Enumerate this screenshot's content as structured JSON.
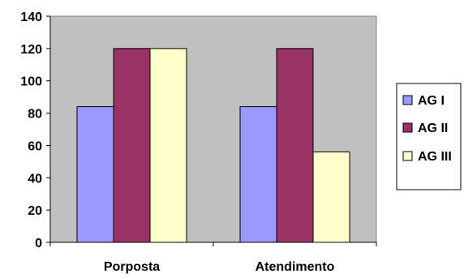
{
  "chart_data": {
    "type": "bar",
    "categories": [
      "Porposta",
      "Atendimento"
    ],
    "series": [
      {
        "name": "AG I",
        "values": [
          84,
          84
        ],
        "color": "#9999FF"
      },
      {
        "name": "AG II",
        "values": [
          120,
          120
        ],
        "color": "#993366"
      },
      {
        "name": "AG III",
        "values": [
          120,
          56
        ],
        "color": "#FFFFCC"
      }
    ],
    "y_ticks": [
      "0",
      "20",
      "40",
      "60",
      "80",
      "100",
      "120",
      "140"
    ],
    "ylim": [
      0,
      140
    ],
    "plot_background": "#C0C0C0",
    "grid": false,
    "legend_position": "right",
    "title": "",
    "xlabel": "",
    "ylabel": ""
  }
}
